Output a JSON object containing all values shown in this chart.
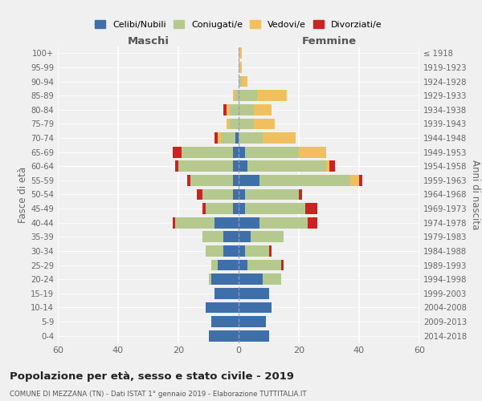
{
  "age_groups": [
    "0-4",
    "5-9",
    "10-14",
    "15-19",
    "20-24",
    "25-29",
    "30-34",
    "35-39",
    "40-44",
    "45-49",
    "50-54",
    "55-59",
    "60-64",
    "65-69",
    "70-74",
    "75-79",
    "80-84",
    "85-89",
    "90-94",
    "95-99",
    "100+"
  ],
  "birth_years": [
    "2014-2018",
    "2009-2013",
    "2004-2008",
    "1999-2003",
    "1994-1998",
    "1989-1993",
    "1984-1988",
    "1979-1983",
    "1974-1978",
    "1969-1973",
    "1964-1968",
    "1959-1963",
    "1954-1958",
    "1949-1953",
    "1944-1948",
    "1939-1943",
    "1934-1938",
    "1929-1933",
    "1924-1928",
    "1919-1923",
    "≤ 1918"
  ],
  "colors": {
    "celibi": "#3e6fa8",
    "coniugati": "#b5c98e",
    "vedovi": "#f0c060",
    "divorziati": "#cc2222"
  },
  "maschi": {
    "celibi": [
      10,
      9,
      11,
      8,
      9,
      7,
      5,
      5,
      8,
      2,
      2,
      2,
      2,
      2,
      1,
      0,
      0,
      0,
      0,
      0,
      0
    ],
    "coniugati": [
      0,
      0,
      0,
      0,
      1,
      2,
      6,
      7,
      13,
      9,
      10,
      14,
      18,
      17,
      5,
      3,
      3,
      1,
      0,
      0,
      0
    ],
    "vedovi": [
      0,
      0,
      0,
      0,
      0,
      0,
      0,
      0,
      0,
      0,
      0,
      0,
      0,
      0,
      1,
      1,
      1,
      1,
      0,
      0,
      0
    ],
    "divorziati": [
      0,
      0,
      0,
      0,
      0,
      0,
      0,
      0,
      1,
      1,
      2,
      1,
      1,
      3,
      1,
      0,
      1,
      0,
      0,
      0,
      0
    ]
  },
  "femmine": {
    "celibi": [
      10,
      9,
      11,
      10,
      8,
      3,
      2,
      4,
      7,
      2,
      2,
      7,
      3,
      2,
      0,
      0,
      0,
      0,
      0,
      0,
      0
    ],
    "coniugati": [
      0,
      0,
      0,
      0,
      6,
      11,
      8,
      11,
      16,
      20,
      18,
      30,
      26,
      18,
      8,
      5,
      5,
      6,
      1,
      0,
      0
    ],
    "vedovi": [
      0,
      0,
      0,
      0,
      0,
      0,
      0,
      0,
      0,
      0,
      0,
      3,
      1,
      9,
      11,
      7,
      6,
      10,
      2,
      1,
      1
    ],
    "divorziati": [
      0,
      0,
      0,
      0,
      0,
      1,
      1,
      0,
      3,
      4,
      1,
      1,
      2,
      0,
      0,
      0,
      0,
      0,
      0,
      0,
      0
    ]
  },
  "xlim": 60,
  "title": "Popolazione per età, sesso e stato civile - 2019",
  "subtitle": "COMUNE DI MEZZANA (TN) - Dati ISTAT 1° gennaio 2019 - Elaborazione TUTTITALIA.IT",
  "ylabel_left": "Fasce di età",
  "ylabel_right": "Anni di nascita",
  "xlabel_left": "Maschi",
  "xlabel_right": "Femmine",
  "legend_labels": [
    "Celibi/Nubili",
    "Coniugati/e",
    "Vedovi/e",
    "Divorziati/e"
  ],
  "background_color": "#f0f0f0"
}
